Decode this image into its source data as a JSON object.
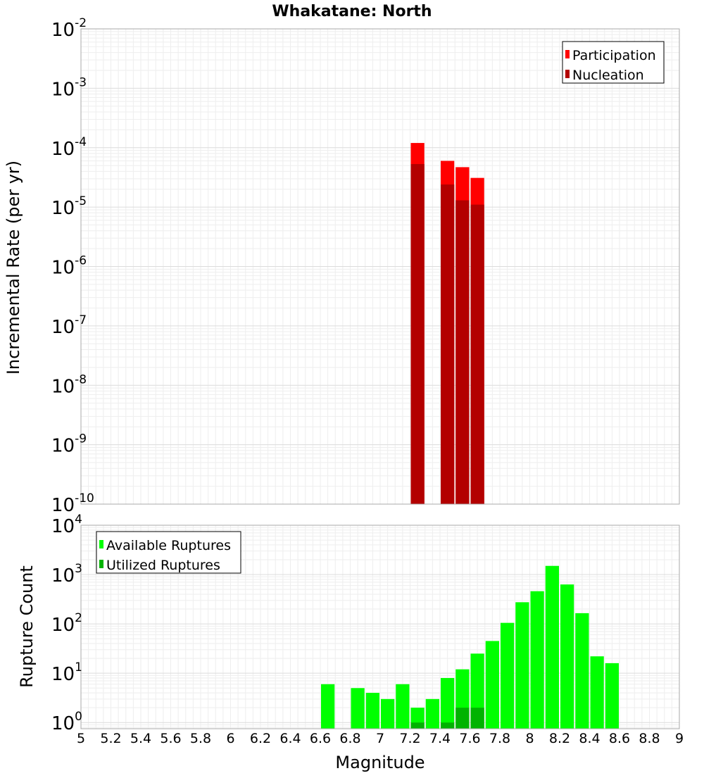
{
  "chart_data": [
    {
      "type": "bar",
      "title": "Whakatane: North",
      "ylabel": "Incremental Rate (per yr)",
      "y_scale": "log",
      "ylim": [
        1e-10,
        0.01
      ],
      "xlim": [
        5,
        9
      ],
      "grid": true,
      "legend_position": "top-right",
      "y_ticks": [
        {
          "base": "10",
          "exp": "-10",
          "value": 1e-10
        },
        {
          "base": "10",
          "exp": "-9",
          "value": 1e-09
        },
        {
          "base": "10",
          "exp": "-8",
          "value": 1e-08
        },
        {
          "base": "10",
          "exp": "-7",
          "value": 1e-07
        },
        {
          "base": "10",
          "exp": "-6",
          "value": 1e-06
        },
        {
          "base": "10",
          "exp": "-5",
          "value": 1e-05
        },
        {
          "base": "10",
          "exp": "-4",
          "value": 0.0001
        },
        {
          "base": "10",
          "exp": "-3",
          "value": 0.001
        },
        {
          "base": "10",
          "exp": "-2",
          "value": 0.01
        }
      ],
      "series": [
        {
          "name": "Participation",
          "color": "#ff0000",
          "points": [
            {
              "x": 7.25,
              "y": 0.00012
            },
            {
              "x": 7.45,
              "y": 6e-05
            },
            {
              "x": 7.55,
              "y": 4.7e-05
            },
            {
              "x": 7.65,
              "y": 3.1e-05
            }
          ]
        },
        {
          "name": "Nucleation",
          "color": "#b30000",
          "points": [
            {
              "x": 7.25,
              "y": 5.3e-05
            },
            {
              "x": 7.45,
              "y": 2.4e-05
            },
            {
              "x": 7.55,
              "y": 1.3e-05
            },
            {
              "x": 7.65,
              "y": 1.1e-05
            }
          ]
        }
      ]
    },
    {
      "type": "bar",
      "xlabel": "Magnitude",
      "ylabel": "Rupture Count",
      "y_scale": "log",
      "ylim": [
        0.75,
        10000
      ],
      "xlim": [
        5,
        9
      ],
      "grid": true,
      "legend_position": "top-left",
      "x_ticks": [
        "5",
        "5.2",
        "5.4",
        "5.6",
        "5.8",
        "6",
        "6.2",
        "6.4",
        "6.6",
        "6.8",
        "7",
        "7.2",
        "7.4",
        "7.6",
        "7.8",
        "8",
        "8.2",
        "8.4",
        "8.6",
        "8.8",
        "9"
      ],
      "y_ticks": [
        {
          "base": "10",
          "exp": "0",
          "value": 1
        },
        {
          "base": "10",
          "exp": "1",
          "value": 10
        },
        {
          "base": "10",
          "exp": "2",
          "value": 100
        },
        {
          "base": "10",
          "exp": "3",
          "value": 1000
        },
        {
          "base": "10",
          "exp": "4",
          "value": 10000
        }
      ],
      "series": [
        {
          "name": "Available Ruptures",
          "color": "#00ff00",
          "points": [
            {
              "x": 6.65,
              "y": 6
            },
            {
              "x": 6.85,
              "y": 5
            },
            {
              "x": 6.95,
              "y": 4
            },
            {
              "x": 7.05,
              "y": 3
            },
            {
              "x": 7.15,
              "y": 6
            },
            {
              "x": 7.25,
              "y": 2
            },
            {
              "x": 7.35,
              "y": 3
            },
            {
              "x": 7.45,
              "y": 8
            },
            {
              "x": 7.55,
              "y": 12
            },
            {
              "x": 7.65,
              "y": 25
            },
            {
              "x": 7.75,
              "y": 45
            },
            {
              "x": 7.85,
              "y": 105
            },
            {
              "x": 7.95,
              "y": 275
            },
            {
              "x": 8.05,
              "y": 460
            },
            {
              "x": 8.15,
              "y": 1500
            },
            {
              "x": 8.25,
              "y": 630
            },
            {
              "x": 8.35,
              "y": 165
            },
            {
              "x": 8.45,
              "y": 22
            },
            {
              "x": 8.55,
              "y": 16
            }
          ]
        },
        {
          "name": "Utilized Ruptures",
          "color": "#00b300",
          "points": [
            {
              "x": 7.25,
              "y": 1
            },
            {
              "x": 7.45,
              "y": 1
            },
            {
              "x": 7.55,
              "y": 2
            },
            {
              "x": 7.65,
              "y": 2
            }
          ]
        }
      ]
    }
  ]
}
